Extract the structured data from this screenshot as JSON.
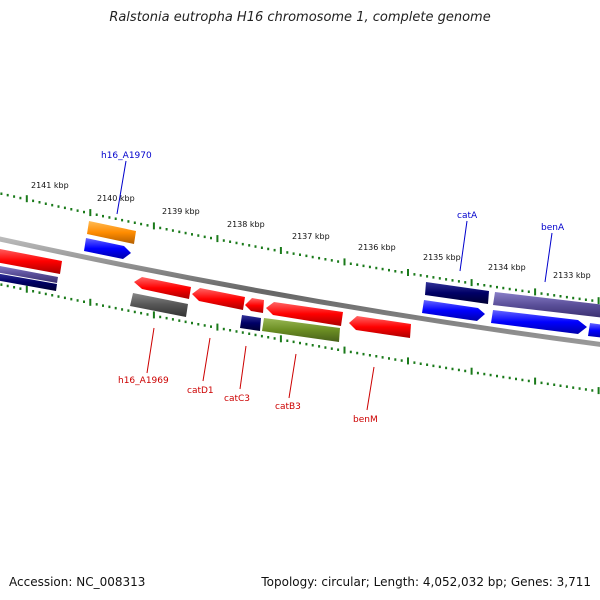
{
  "title": "Ralstonia eutropha H16 chromosome 1, complete genome",
  "footer": {
    "accession": "Accession: NC_008313",
    "summary": "Topology: circular; Length: 4,052,032 bp; Genes: 3,711"
  },
  "colors": {
    "backbone": "#777777",
    "tick": "#1a7a1a",
    "forward_label": "#0000cc",
    "reverse_label": "#cc0000",
    "red": "#ff0000",
    "blue": "#0000ff",
    "navy": "#000066",
    "orange": "#ff8c00",
    "gray": "#555555",
    "olive": "#6b8e23",
    "slate": "#5a4f99"
  },
  "kbp_labels": [
    "2141 kbp",
    "2140 kbp",
    "2139 kbp",
    "2138 kbp",
    "2137 kbp",
    "2136 kbp",
    "2135 kbp",
    "2134 kbp",
    "2133 kbp"
  ],
  "gene_labels": {
    "forward": [
      "h16_A1970",
      "catA",
      "benA"
    ],
    "reverse": [
      "h16_A1969",
      "catD1",
      "catC3",
      "catB3",
      "benM"
    ]
  }
}
